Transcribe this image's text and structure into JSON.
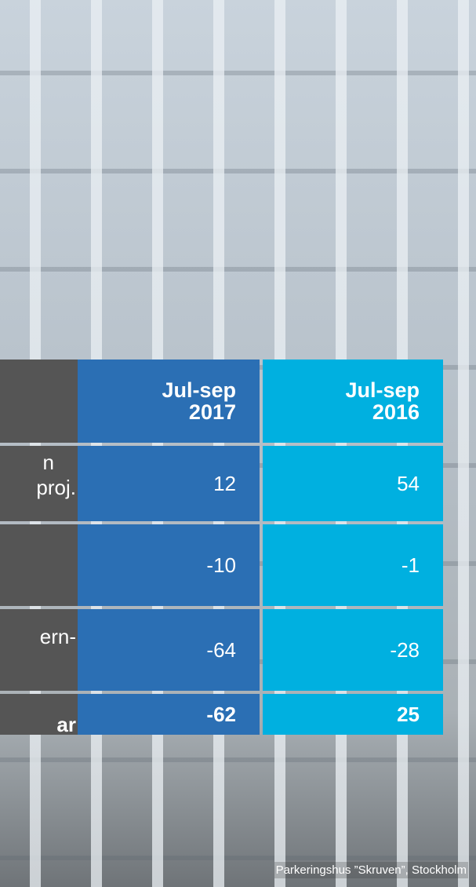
{
  "table": {
    "header": [
      [
        "Jul-sep",
        "2017"
      ],
      [
        "Jul-sep",
        "2016"
      ]
    ],
    "rows": [
      {
        "label": [
          "n",
          "proj."
        ],
        "cells": [
          "12",
          "54"
        ]
      },
      {
        "label": [],
        "cells": [
          "-10",
          "-1"
        ]
      },
      {
        "label": [
          "ern-"
        ],
        "cells": [
          "-64",
          "-28"
        ]
      },
      {
        "label": [
          "ar"
        ],
        "cells": [
          "-62",
          "25"
        ]
      }
    ]
  },
  "caption": "Parkeringshus ”Skruven”, Stockholm"
}
